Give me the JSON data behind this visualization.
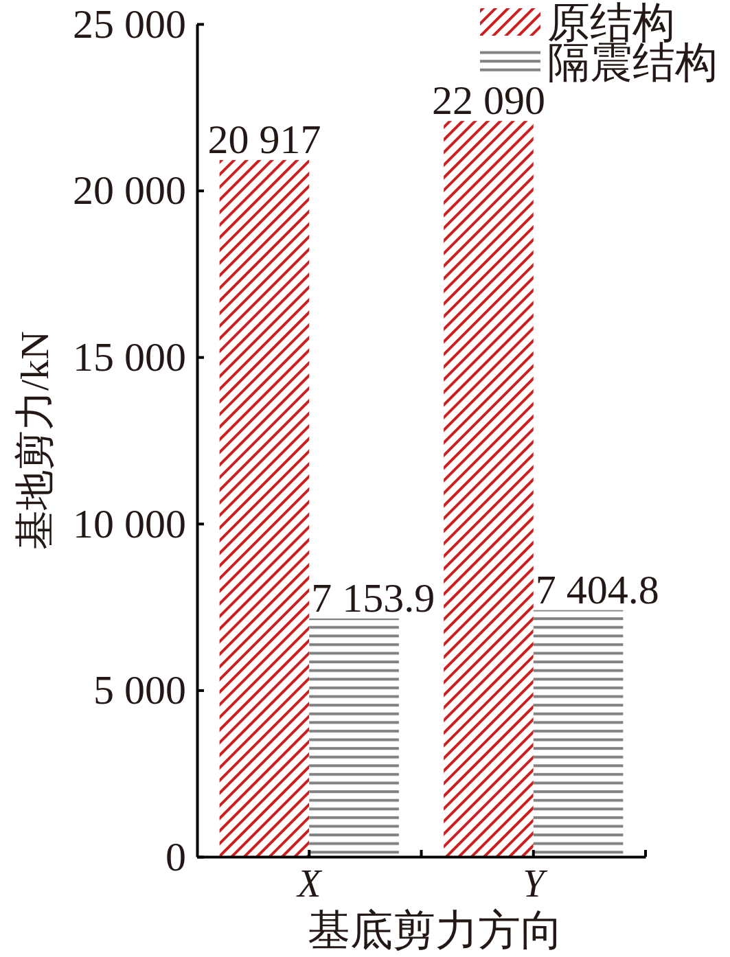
{
  "chart_data": {
    "type": "bar",
    "xlabel": "基底剪力方向",
    "ylabel": "基地剪力/kN",
    "categories": [
      "X",
      "Y"
    ],
    "series": [
      {
        "name": "原结构",
        "color": "#cc2020",
        "values": [
          20917,
          22090
        ],
        "value_labels": [
          "20 917",
          "22 090"
        ]
      },
      {
        "name": "隔震结构",
        "color": "#808080",
        "values": [
          7153.9,
          7404.8
        ],
        "value_labels": [
          "7 153.9",
          "7 404.8"
        ]
      }
    ],
    "ylim": [
      0,
      25000
    ],
    "yticks": [
      0,
      {
        "value": 5000,
        "label": "5 000"
      },
      {
        "value": 10000,
        "label": "10 000"
      },
      {
        "value": 15000,
        "label": "15 000"
      },
      {
        "value": 20000,
        "label": "20 000"
      },
      {
        "value": 25000,
        "label": "25 000"
      }
    ],
    "legend": "top right"
  }
}
